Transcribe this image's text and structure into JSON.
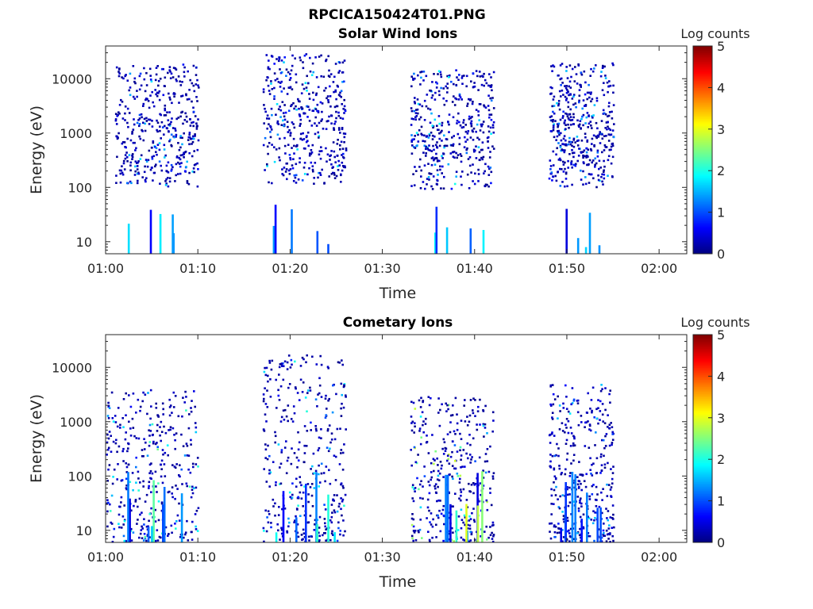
{
  "figure_title": "RPCICA150424T01.PNG",
  "colors": {
    "colormap": [
      "#00008f",
      "#0000ff",
      "#00ffff",
      "#ffff00",
      "#ff0000",
      "#800000"
    ],
    "axes": "#262626"
  },
  "chart_data": [
    {
      "type": "heatmap",
      "title": "Solar Wind Ions",
      "xlabel": "Time",
      "ylabel": "Energy (eV)",
      "xlim": [
        "01:00",
        "02:03"
      ],
      "ylim": [
        6,
        40000
      ],
      "yscale": "log",
      "x_ticks": [
        "01:00",
        "01:10",
        "01:20",
        "01:30",
        "01:40",
        "01:50",
        "02:00"
      ],
      "y_ticks": [
        "10",
        "100",
        "1000",
        "10000"
      ],
      "colorbar": {
        "label": "Log counts",
        "ticks": [
          "0",
          "1",
          "2",
          "3",
          "4",
          "5"
        ],
        "range": [
          0,
          5
        ]
      },
      "bursts": [
        {
          "start": "01:01",
          "end": "01:10",
          "emin": 6,
          "emax": 20000,
          "peak_log_counts": 1.8
        },
        {
          "start": "01:17",
          "end": "01:26",
          "emin": 6,
          "emax": 30000,
          "peak_log_counts": 1.8
        },
        {
          "start": "01:33",
          "end": "01:42",
          "emin": 6,
          "emax": 15000,
          "peak_log_counts": 2.0
        },
        {
          "start": "01:48",
          "end": "01:55",
          "emin": 6,
          "emax": 20000,
          "peak_log_counts": 1.7
        }
      ]
    },
    {
      "type": "heatmap",
      "title": "Cometary Ions",
      "xlabel": "Time",
      "ylabel": "Energy (eV)",
      "xlim": [
        "01:00",
        "02:03"
      ],
      "ylim": [
        6,
        40000
      ],
      "yscale": "log",
      "x_ticks": [
        "01:00",
        "01:10",
        "01:20",
        "01:30",
        "01:40",
        "01:50",
        "02:00"
      ],
      "y_ticks": [
        "10",
        "100",
        "1000",
        "10000"
      ],
      "colorbar": {
        "label": "Log counts",
        "ticks": [
          "0",
          "1",
          "2",
          "3",
          "4",
          "5"
        ],
        "range": [
          0,
          5
        ]
      },
      "bursts": [
        {
          "start": "01:00",
          "end": "01:10",
          "emin": 6,
          "emax": 4000,
          "peak_log_counts": 2.5
        },
        {
          "start": "01:17",
          "end": "01:26",
          "emin": 6,
          "emax": 18000,
          "peak_log_counts": 2.2
        },
        {
          "start": "01:33",
          "end": "01:42",
          "emin": 6,
          "emax": 3000,
          "peak_log_counts": 3.0
        },
        {
          "start": "01:48",
          "end": "01:55",
          "emin": 6,
          "emax": 5000,
          "peak_log_counts": 1.8
        }
      ]
    }
  ]
}
